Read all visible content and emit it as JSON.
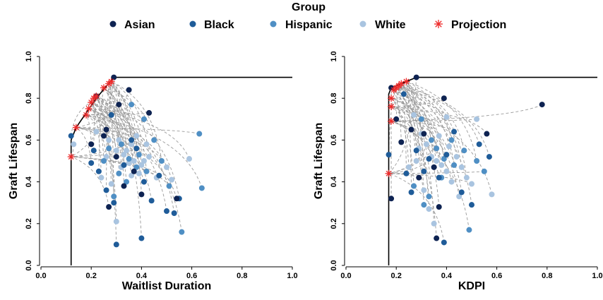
{
  "legend": {
    "title": "Group",
    "items": [
      {
        "label": "Asian",
        "color": "#0e2352",
        "marker": "dot"
      },
      {
        "label": "Black",
        "color": "#1f5c99",
        "marker": "dot"
      },
      {
        "label": "Hispanic",
        "color": "#4f8fc4",
        "marker": "dot"
      },
      {
        "label": "White",
        "color": "#a9c4e0",
        "marker": "dot"
      },
      {
        "label": "Projection",
        "color": "#ee2a2a",
        "marker": "star"
      }
    ]
  },
  "chart_data": [
    {
      "type": "scatter",
      "title": "",
      "xlabel": "Waitlist Duration",
      "ylabel": "Graft Lifespan",
      "xlim": [
        0,
        1
      ],
      "ylim": [
        0,
        1
      ],
      "xticks": [
        "0.0",
        "0.2",
        "0.4",
        "0.6",
        "0.8",
        "1.0"
      ],
      "yticks": [
        "0.0",
        "0.2",
        "0.4",
        "0.6",
        "0.8",
        "1.0"
      ],
      "grid": false,
      "legend_position": "top-center",
      "frontier": [
        [
          0.12,
          0
        ],
        [
          0.12,
          0.6
        ],
        [
          0.14,
          0.66
        ],
        [
          0.18,
          0.73
        ],
        [
          0.22,
          0.8
        ],
        [
          0.29,
          0.9
        ],
        [
          1.0,
          0.9
        ]
      ],
      "projections": [
        [
          0.12,
          0.52
        ],
        [
          0.14,
          0.66
        ],
        [
          0.18,
          0.72
        ],
        [
          0.19,
          0.75
        ],
        [
          0.2,
          0.78
        ],
        [
          0.21,
          0.8
        ],
        [
          0.22,
          0.81
        ],
        [
          0.25,
          0.85
        ],
        [
          0.27,
          0.87
        ],
        [
          0.28,
          0.88
        ]
      ],
      "series": [
        {
          "name": "Asian",
          "points": [
            [
              0.29,
              0.9
            ],
            [
              0.35,
              0.84
            ],
            [
              0.43,
              0.73
            ],
            [
              0.22,
              0.81
            ],
            [
              0.26,
              0.65
            ],
            [
              0.31,
              0.77
            ],
            [
              0.3,
              0.52
            ],
            [
              0.37,
              0.45
            ],
            [
              0.33,
              0.38
            ],
            [
              0.4,
              0.34
            ],
            [
              0.27,
              0.28
            ],
            [
              0.54,
              0.32
            ],
            [
              0.2,
              0.58
            ],
            [
              0.25,
              0.62
            ]
          ]
        },
        {
          "name": "Black",
          "points": [
            [
              0.12,
              0.62
            ],
            [
              0.28,
              0.72
            ],
            [
              0.21,
              0.55
            ],
            [
              0.23,
              0.45
            ],
            [
              0.26,
              0.36
            ],
            [
              0.33,
              0.48
            ],
            [
              0.38,
              0.56
            ],
            [
              0.41,
              0.4
            ],
            [
              0.44,
              0.31
            ],
            [
              0.5,
              0.26
            ],
            [
              0.53,
              0.25
            ],
            [
              0.55,
              0.32
            ],
            [
              0.3,
              0.1
            ],
            [
              0.4,
              0.13
            ],
            [
              0.29,
              0.3
            ],
            [
              0.36,
              0.6
            ],
            [
              0.47,
              0.43
            ],
            [
              0.2,
              0.49
            ]
          ]
        },
        {
          "name": "Hispanic",
          "points": [
            [
              0.36,
              0.77
            ],
            [
              0.41,
              0.7
            ],
            [
              0.25,
              0.5
            ],
            [
              0.32,
              0.58
            ],
            [
              0.35,
              0.51
            ],
            [
              0.38,
              0.47
            ],
            [
              0.42,
              0.45
            ],
            [
              0.48,
              0.5
            ],
            [
              0.51,
              0.38
            ],
            [
              0.63,
              0.63
            ],
            [
              0.64,
              0.37
            ],
            [
              0.56,
              0.16
            ],
            [
              0.29,
              0.33
            ],
            [
              0.34,
              0.4
            ],
            [
              0.39,
              0.53
            ],
            [
              0.45,
              0.6
            ],
            [
              0.31,
              0.44
            ],
            [
              0.27,
              0.56
            ]
          ]
        },
        {
          "name": "White",
          "points": [
            [
              0.13,
              0.58
            ],
            [
              0.22,
              0.64
            ],
            [
              0.27,
              0.6
            ],
            [
              0.3,
              0.55
            ],
            [
              0.33,
              0.53
            ],
            [
              0.35,
              0.49
            ],
            [
              0.37,
              0.5
            ],
            [
              0.39,
              0.44
            ],
            [
              0.4,
              0.48
            ],
            [
              0.43,
              0.52
            ],
            [
              0.46,
              0.42
            ],
            [
              0.5,
              0.47
            ],
            [
              0.52,
              0.41
            ],
            [
              0.59,
              0.51
            ],
            [
              0.24,
              0.42
            ],
            [
              0.28,
              0.39
            ],
            [
              0.3,
              0.21
            ],
            [
              0.32,
              0.47
            ],
            [
              0.36,
              0.58
            ],
            [
              0.34,
              0.55
            ],
            [
              0.38,
              0.62
            ],
            [
              0.42,
              0.58
            ],
            [
              0.26,
              0.52
            ],
            [
              0.31,
              0.6
            ],
            [
              0.36,
              0.43
            ],
            [
              0.41,
              0.5
            ]
          ]
        }
      ]
    },
    {
      "type": "scatter",
      "title": "",
      "xlabel": "KDPI",
      "ylabel": "Graft Lifespan",
      "xlim": [
        0,
        1
      ],
      "ylim": [
        0,
        1
      ],
      "xticks": [
        "0.0",
        "0.2",
        "0.4",
        "0.6",
        "0.8",
        "1.0"
      ],
      "yticks": [
        "0.0",
        "0.2",
        "0.4",
        "0.6",
        "0.8",
        "1.0"
      ],
      "grid": false,
      "legend_position": "top-center",
      "frontier": [
        [
          0.17,
          0
        ],
        [
          0.17,
          0.82
        ],
        [
          0.18,
          0.85
        ],
        [
          0.22,
          0.87
        ],
        [
          0.28,
          0.9
        ],
        [
          1.0,
          0.9
        ]
      ],
      "projections": [
        [
          0.17,
          0.44
        ],
        [
          0.18,
          0.69
        ],
        [
          0.18,
          0.76
        ],
        [
          0.18,
          0.8
        ],
        [
          0.19,
          0.84
        ],
        [
          0.2,
          0.85
        ],
        [
          0.21,
          0.86
        ],
        [
          0.22,
          0.87
        ],
        [
          0.24,
          0.88
        ]
      ],
      "series": [
        {
          "name": "Asian",
          "points": [
            [
              0.28,
              0.9
            ],
            [
              0.78,
              0.77
            ],
            [
              0.39,
              0.8
            ],
            [
              0.18,
              0.85
            ],
            [
              0.22,
              0.59
            ],
            [
              0.26,
              0.65
            ],
            [
              0.31,
              0.63
            ],
            [
              0.2,
              0.7
            ],
            [
              0.35,
              0.47
            ],
            [
              0.29,
              0.42
            ],
            [
              0.18,
              0.32
            ],
            [
              0.56,
              0.63
            ],
            [
              0.36,
              0.13
            ],
            [
              0.37,
              0.28
            ]
          ]
        },
        {
          "name": "Black",
          "points": [
            [
              0.17,
              0.53
            ],
            [
              0.23,
              0.82
            ],
            [
              0.28,
              0.55
            ],
            [
              0.31,
              0.45
            ],
            [
              0.33,
              0.51
            ],
            [
              0.37,
              0.42
            ],
            [
              0.4,
              0.53
            ],
            [
              0.46,
              0.35
            ],
            [
              0.5,
              0.29
            ],
            [
              0.53,
              0.58
            ],
            [
              0.57,
              0.52
            ],
            [
              0.24,
              0.44
            ],
            [
              0.26,
              0.35
            ],
            [
              0.39,
              0.11
            ],
            [
              0.43,
              0.64
            ]
          ]
        },
        {
          "name": "Hispanic",
          "points": [
            [
              0.3,
              0.7
            ],
            [
              0.34,
              0.6
            ],
            [
              0.36,
              0.56
            ],
            [
              0.39,
              0.51
            ],
            [
              0.43,
              0.48
            ],
            [
              0.47,
              0.55
            ],
            [
              0.52,
              0.5
            ],
            [
              0.55,
              0.45
            ],
            [
              0.49,
              0.17
            ],
            [
              0.33,
              0.33
            ],
            [
              0.27,
              0.38
            ],
            [
              0.31,
              0.29
            ],
            [
              0.38,
              0.42
            ],
            [
              0.42,
              0.6
            ]
          ]
        },
        {
          "name": "White",
          "points": [
            [
              0.27,
              0.72
            ],
            [
              0.3,
              0.63
            ],
            [
              0.32,
              0.58
            ],
            [
              0.34,
              0.52
            ],
            [
              0.36,
              0.5
            ],
            [
              0.38,
              0.48
            ],
            [
              0.4,
              0.45
            ],
            [
              0.41,
              0.57
            ],
            [
              0.44,
              0.52
            ],
            [
              0.46,
              0.47
            ],
            [
              0.48,
              0.42
            ],
            [
              0.5,
              0.39
            ],
            [
              0.52,
              0.7
            ],
            [
              0.58,
              0.34
            ],
            [
              0.25,
              0.47
            ],
            [
              0.28,
              0.5
            ],
            [
              0.31,
              0.36
            ],
            [
              0.33,
              0.27
            ],
            [
              0.35,
              0.2
            ],
            [
              0.29,
              0.56
            ],
            [
              0.37,
              0.62
            ],
            [
              0.42,
              0.4
            ],
            [
              0.45,
              0.33
            ],
            [
              0.4,
              0.71
            ]
          ]
        }
      ]
    }
  ]
}
